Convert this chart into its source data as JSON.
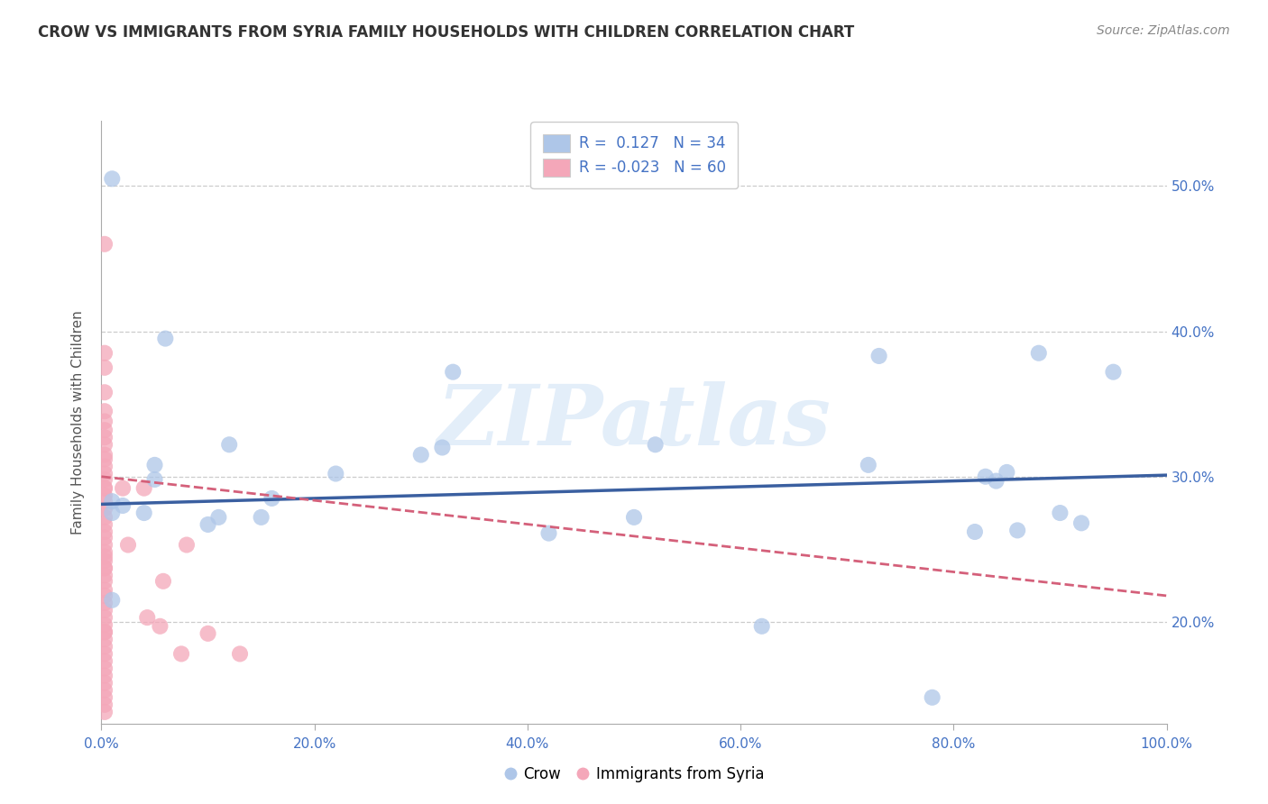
{
  "title": "CROW VS IMMIGRANTS FROM SYRIA FAMILY HOUSEHOLDS WITH CHILDREN CORRELATION CHART",
  "source": "Source: ZipAtlas.com",
  "ylabel": "Family Households with Children",
  "ylabel_right_labels": [
    "20.0%",
    "30.0%",
    "40.0%",
    "50.0%"
  ],
  "ylabel_right_values": [
    0.2,
    0.3,
    0.4,
    0.5
  ],
  "xlim": [
    0.0,
    1.0
  ],
  "ylim": [
    0.13,
    0.545
  ],
  "watermark": "ZIPatlas",
  "crow_R": 0.127,
  "crow_N": 34,
  "syria_R": -0.023,
  "syria_N": 60,
  "crow_color": "#aec6e8",
  "crow_line_color": "#3a5fa0",
  "syria_color": "#f4a7b9",
  "syria_line_color": "#d4607a",
  "crow_scatter_x": [
    0.01,
    0.01,
    0.01,
    0.01,
    0.02,
    0.04,
    0.05,
    0.05,
    0.06,
    0.1,
    0.11,
    0.12,
    0.15,
    0.16,
    0.22,
    0.3,
    0.32,
    0.33,
    0.42,
    0.5,
    0.52,
    0.62,
    0.72,
    0.73,
    0.78,
    0.82,
    0.83,
    0.84,
    0.85,
    0.86,
    0.88,
    0.9,
    0.92,
    0.95
  ],
  "crow_scatter_y": [
    0.215,
    0.275,
    0.283,
    0.505,
    0.28,
    0.275,
    0.298,
    0.308,
    0.395,
    0.267,
    0.272,
    0.322,
    0.272,
    0.285,
    0.302,
    0.315,
    0.32,
    0.372,
    0.261,
    0.272,
    0.322,
    0.197,
    0.308,
    0.383,
    0.148,
    0.262,
    0.3,
    0.297,
    0.303,
    0.263,
    0.385,
    0.275,
    0.268,
    0.372
  ],
  "syria_scatter_x": [
    0.003,
    0.003,
    0.003,
    0.003,
    0.003,
    0.003,
    0.003,
    0.003,
    0.003,
    0.003,
    0.003,
    0.003,
    0.003,
    0.003,
    0.003,
    0.003,
    0.003,
    0.003,
    0.003,
    0.003,
    0.003,
    0.003,
    0.003,
    0.003,
    0.003,
    0.003,
    0.003,
    0.003,
    0.003,
    0.003,
    0.003,
    0.003,
    0.003,
    0.003,
    0.003,
    0.003,
    0.003,
    0.003,
    0.003,
    0.003,
    0.003,
    0.003,
    0.003,
    0.003,
    0.003,
    0.003,
    0.003,
    0.003,
    0.003,
    0.003,
    0.02,
    0.025,
    0.04,
    0.043,
    0.055,
    0.058,
    0.075,
    0.08,
    0.1,
    0.13
  ],
  "syria_scatter_y": [
    0.46,
    0.385,
    0.375,
    0.358,
    0.345,
    0.338,
    0.332,
    0.327,
    0.322,
    0.315,
    0.312,
    0.307,
    0.302,
    0.298,
    0.292,
    0.287,
    0.283,
    0.278,
    0.272,
    0.267,
    0.262,
    0.258,
    0.253,
    0.248,
    0.242,
    0.237,
    0.232,
    0.228,
    0.222,
    0.218,
    0.213,
    0.208,
    0.203,
    0.198,
    0.193,
    0.188,
    0.183,
    0.178,
    0.173,
    0.168,
    0.163,
    0.158,
    0.153,
    0.148,
    0.143,
    0.138,
    0.193,
    0.245,
    0.292,
    0.237,
    0.292,
    0.253,
    0.292,
    0.203,
    0.197,
    0.228,
    0.178,
    0.253,
    0.192,
    0.178
  ],
  "crow_line_y": [
    0.281,
    0.301
  ],
  "syria_line_y": [
    0.3,
    0.218
  ],
  "gridline_y": [
    0.2,
    0.3,
    0.4,
    0.5
  ],
  "background_color": "#ffffff",
  "title_color": "#333333",
  "source_color": "#888888",
  "axis_label_color": "#555555",
  "tick_color": "#4472c4"
}
